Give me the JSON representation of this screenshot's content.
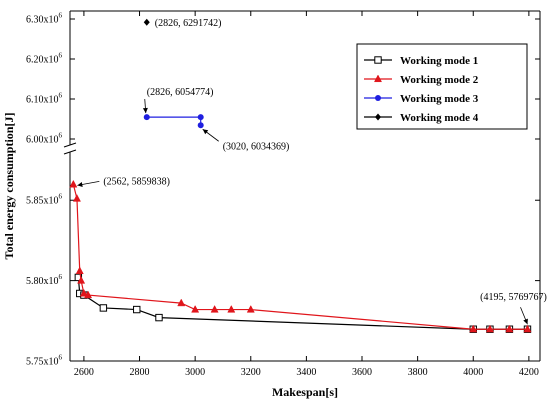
{
  "chart_data": {
    "type": "line",
    "xlabel": "Makespan[s]",
    "ylabel": "Total energy consumption[J]",
    "xlim": [
      2550,
      4240
    ],
    "x_ticks": [
      2600,
      2800,
      3000,
      3200,
      3400,
      3600,
      3800,
      4000,
      4200
    ],
    "y_lower_range": [
      5750000,
      5880000
    ],
    "y_upper_range": [
      5985000,
      6320000
    ],
    "y_axis_break": true,
    "y_ticks_lower": [
      {
        "value": 5750000,
        "label": "5.75x10",
        "exp": "6"
      },
      {
        "value": 5800000,
        "label": "5.80x10",
        "exp": "6"
      },
      {
        "value": 5850000,
        "label": "5.85x10",
        "exp": "6"
      }
    ],
    "y_ticks_upper": [
      {
        "value": 6000000,
        "label": "6.00x10",
        "exp": "6"
      },
      {
        "value": 6100000,
        "label": "6.10x10",
        "exp": "6"
      },
      {
        "value": 6200000,
        "label": "6.20x10",
        "exp": "6"
      },
      {
        "value": 6300000,
        "label": "6.30x10",
        "exp": "6"
      }
    ],
    "legend_position": "top-right",
    "series": [
      {
        "name": "Working mode 1",
        "color": "#000000",
        "marker": "open-square",
        "points": [
          [
            2580,
            5802000
          ],
          [
            2585,
            5792000
          ],
          [
            2600,
            5791000
          ],
          [
            2670,
            5783000
          ],
          [
            2790,
            5782000
          ],
          [
            2870,
            5777000
          ],
          [
            4000,
            5769767
          ],
          [
            4060,
            5769767
          ],
          [
            4130,
            5769767
          ],
          [
            4195,
            5769767
          ]
        ]
      },
      {
        "name": "Working mode 2",
        "color": "#e0151b",
        "marker": "filled-triangle",
        "points": [
          [
            2562,
            5859838
          ],
          [
            2575,
            5851000
          ],
          [
            2585,
            5806000
          ],
          [
            2590,
            5800000
          ],
          [
            2600,
            5792000
          ],
          [
            2615,
            5791000
          ],
          [
            2950,
            5786000
          ],
          [
            3000,
            5782000
          ],
          [
            3070,
            5782000
          ],
          [
            3130,
            5782000
          ],
          [
            3200,
            5782000
          ],
          [
            4000,
            5769767
          ],
          [
            4060,
            5769767
          ],
          [
            4130,
            5769767
          ],
          [
            4195,
            5769767
          ]
        ]
      },
      {
        "name": "Working mode 3",
        "color": "#1f1fe0",
        "marker": "filled-circle",
        "points": [
          [
            2826,
            6054774
          ],
          [
            3020,
            6054774
          ],
          [
            3020,
            6034369
          ]
        ]
      },
      {
        "name": "Working mode 4",
        "color": "#000000",
        "marker": "filled-diamond",
        "points": [
          [
            2826,
            6291742
          ]
        ]
      }
    ],
    "annotations": [
      {
        "text": "(2826, 6291742)",
        "x": 2826,
        "y": 6291742
      },
      {
        "text": "(2826, 6054774)",
        "x": 2826,
        "y": 6054774
      },
      {
        "text": "(3020, 6034369)",
        "x": 3020,
        "y": 6034369
      },
      {
        "text": "(2562, 5859838)",
        "x": 2562,
        "y": 5859838
      },
      {
        "text": "(4195, 5769767)",
        "x": 4195,
        "y": 5769767
      }
    ]
  }
}
